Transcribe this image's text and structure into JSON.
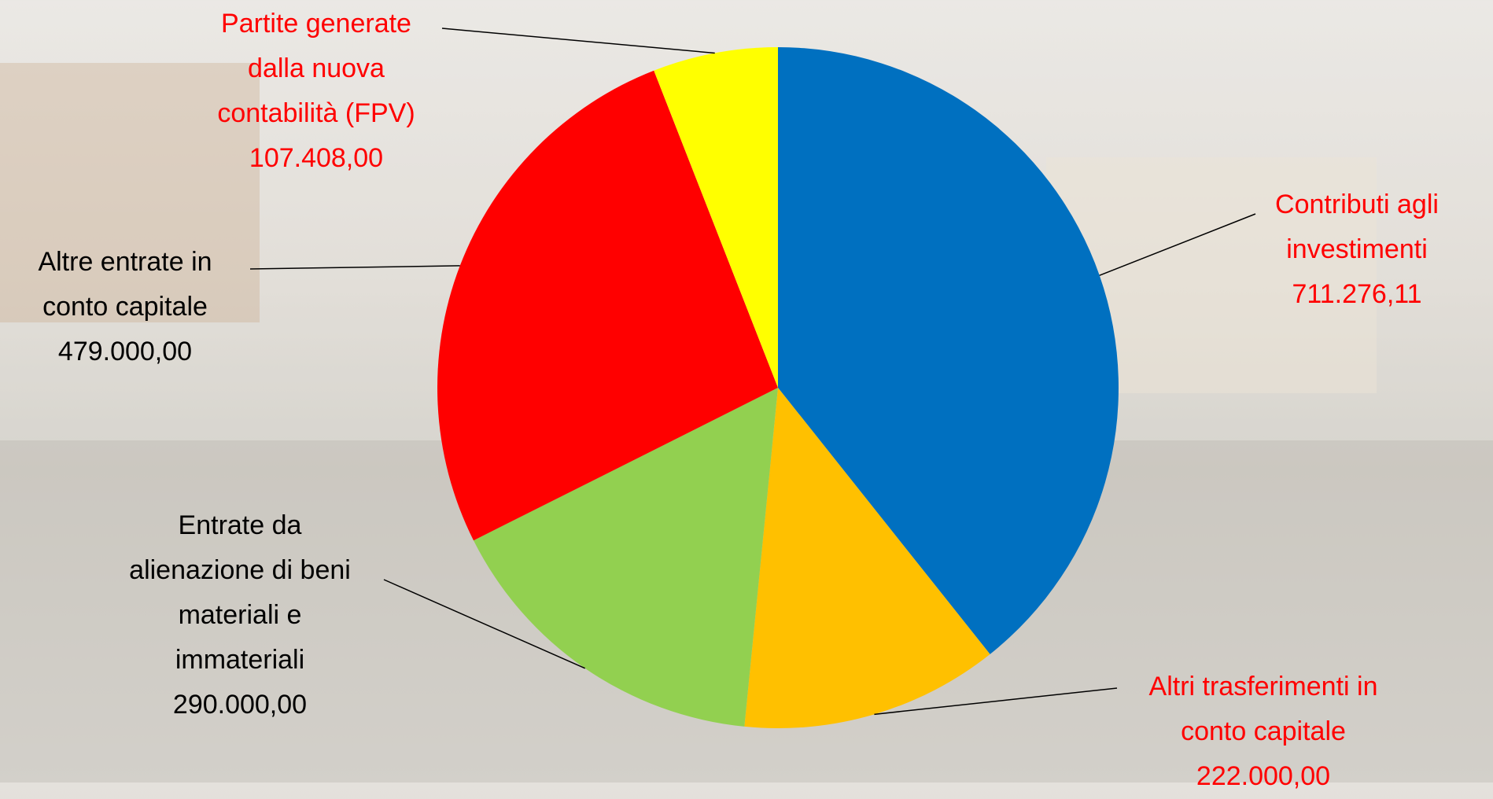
{
  "chart_data": {
    "type": "pie",
    "categories": [
      "Contributi agli investimenti",
      "Altri trasferimenti in conto capitale",
      "Entrate da alienazione di beni materiali e immateriali",
      "Altre entrate in conto capitale",
      "Partite generate dalla nuova contabilità (FPV)"
    ],
    "values": [
      711276.11,
      222000,
      290000,
      479000,
      107408
    ],
    "value_labels": [
      "711.276,11",
      "222.000,00",
      "290.000,00",
      "479.000,00",
      "107.408,00"
    ],
    "colors": [
      "#0070c0",
      "#ffc000",
      "#92d050",
      "#ff0000",
      "#ffff00"
    ],
    "label_colors": [
      "#ff0000",
      "#ff0000",
      "#000000",
      "#000000",
      "#ff0000"
    ]
  }
}
